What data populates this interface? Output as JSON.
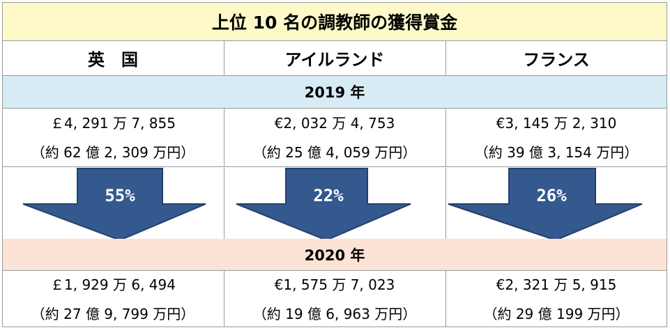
{
  "title": "上位 10 名の調教師の獲得賞金",
  "headers": [
    "英　国",
    "アイルランド",
    "フランス"
  ],
  "year_2019": "2019 年",
  "year_2020": "2020 年",
  "rows_2019": [
    {
      "amount": "￡4, 291 万 7, 855",
      "yen": "（約 62 億 2, 309 万円）"
    },
    {
      "amount": "€2, 032 万 4, 753",
      "yen": "（約 25 億 4, 059 万円）"
    },
    {
      "amount": "€3, 145 万 2, 310",
      "yen": "（約 39 億 3, 154 万円）"
    }
  ],
  "arrows": [
    "55%",
    "22%",
    "26%"
  ],
  "rows_2020": [
    {
      "amount": "￡1, 929 万 6, 494",
      "yen": "（約 27 億 9, 799 万円）"
    },
    {
      "amount": "€1, 575 万 7, 023",
      "yen": "（約 19 億 6, 963 万円）"
    },
    {
      "amount": "€2, 321 万 5, 915",
      "yen": "（約 29 億 199 万円）"
    }
  ],
  "colors": {
    "title_bg": "#fdf9c8",
    "year_2019_bg": "#d6ebf3",
    "year_2020_bg": "#fbe3d6",
    "arrow_fill": "#34598f",
    "arrow_stroke": "#24406a"
  }
}
